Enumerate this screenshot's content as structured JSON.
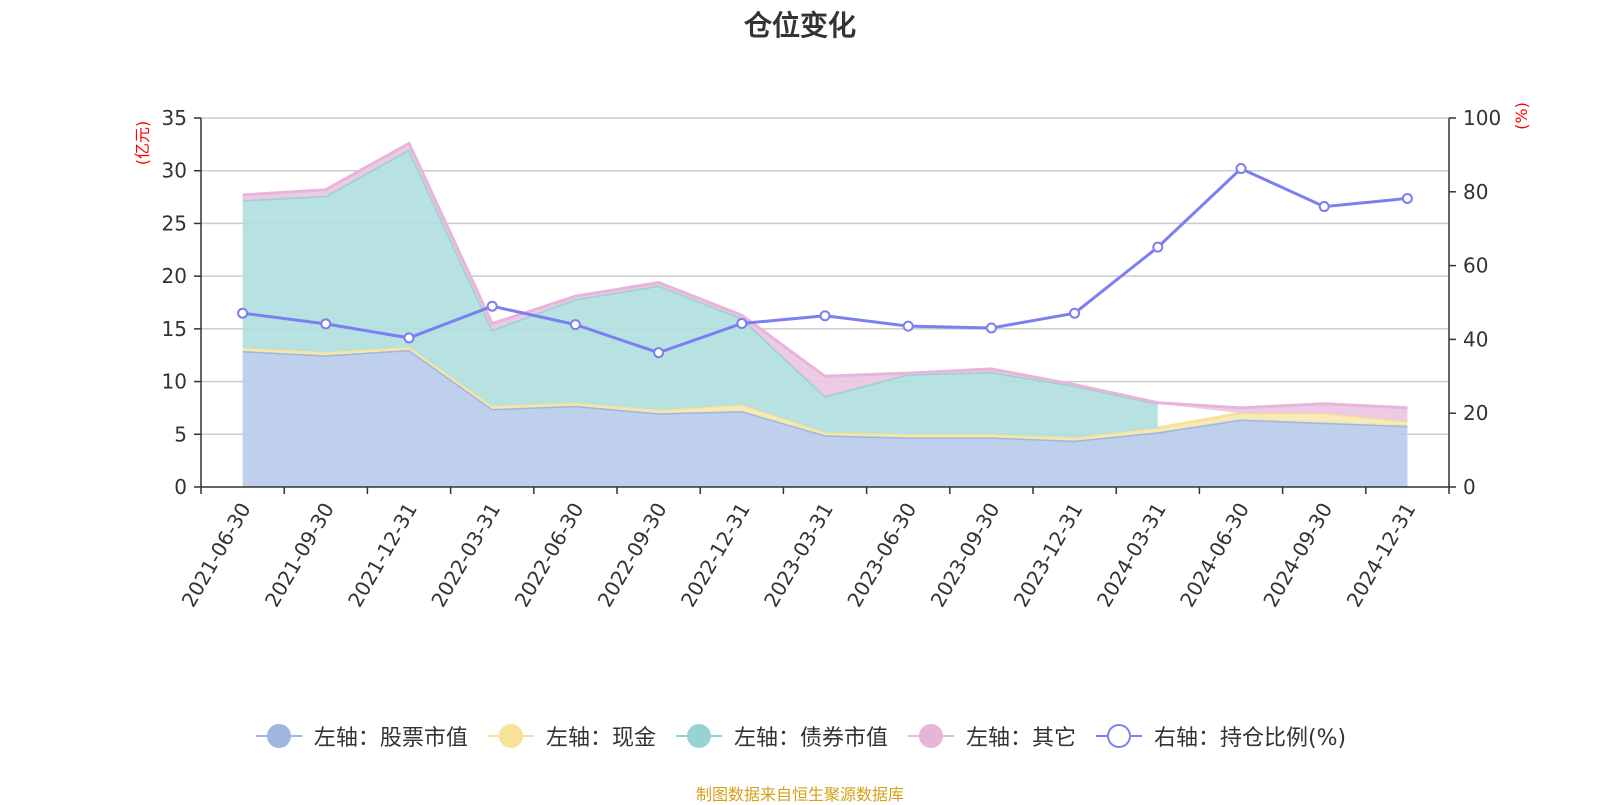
{
  "chart_data": {
    "type": "area",
    "title": "仓位变化",
    "categories": [
      "2021-06-30",
      "2021-09-30",
      "2021-12-31",
      "2022-03-31",
      "2022-06-30",
      "2022-09-30",
      "2022-12-31",
      "2023-03-31",
      "2023-06-30",
      "2023-09-30",
      "2023-12-31",
      "2024-03-31",
      "2024-06-30",
      "2024-09-30",
      "2024-12-31"
    ],
    "left_axis": {
      "unit": "(亿元)",
      "ylim": [
        0,
        35
      ],
      "ticks": [
        0,
        5,
        10,
        15,
        20,
        25,
        30,
        35
      ]
    },
    "right_axis": {
      "unit": "(%)",
      "ylim": [
        0,
        100
      ],
      "ticks": [
        0,
        20,
        40,
        60,
        80,
        100
      ]
    },
    "stacked_series": [
      {
        "name": "左轴：股票市值",
        "color": "#9db7e0",
        "fill": "#b8cce9",
        "values": [
          12.9,
          12.5,
          13.0,
          7.4,
          7.7,
          7.0,
          7.2,
          4.9,
          4.7,
          4.7,
          4.4,
          5.2,
          6.4,
          6.1,
          5.8
        ]
      },
      {
        "name": "左轴：现金",
        "color": "#f7e29a",
        "fill": "#f7e9b3",
        "values": [
          0.3,
          0.3,
          0.3,
          0.3,
          0.3,
          0.3,
          0.6,
          0.3,
          0.3,
          0.3,
          0.3,
          0.4,
          0.6,
          0.9,
          0.4
        ]
      },
      {
        "name": "左轴：债券市值",
        "color": "#97d3d3",
        "fill": "#b2e0e0",
        "values": [
          14.0,
          14.8,
          18.7,
          7.2,
          9.8,
          11.8,
          8.2,
          3.4,
          5.7,
          5.9,
          4.9,
          2.3,
          0,
          0,
          0
        ]
      },
      {
        "name": "左轴：其它",
        "color": "#e7b4da",
        "fill": "#edc7e3",
        "values": [
          0.5,
          0.6,
          0.6,
          0.6,
          0.3,
          0.3,
          0.3,
          1.9,
          0.1,
          0.3,
          0.1,
          0.1,
          0.5,
          0.9,
          1.3
        ]
      }
    ],
    "line_series": {
      "name": "右轴：持仓比例(%)",
      "color": "#7b7ff0",
      "values": [
        47.1,
        44.2,
        40.4,
        49.0,
        44.0,
        36.4,
        44.3,
        46.4,
        43.6,
        43.1,
        47.1,
        65.0,
        86.3,
        76.0,
        78.2
      ]
    },
    "source_note": "制图数据来自恒生聚源数据库"
  }
}
